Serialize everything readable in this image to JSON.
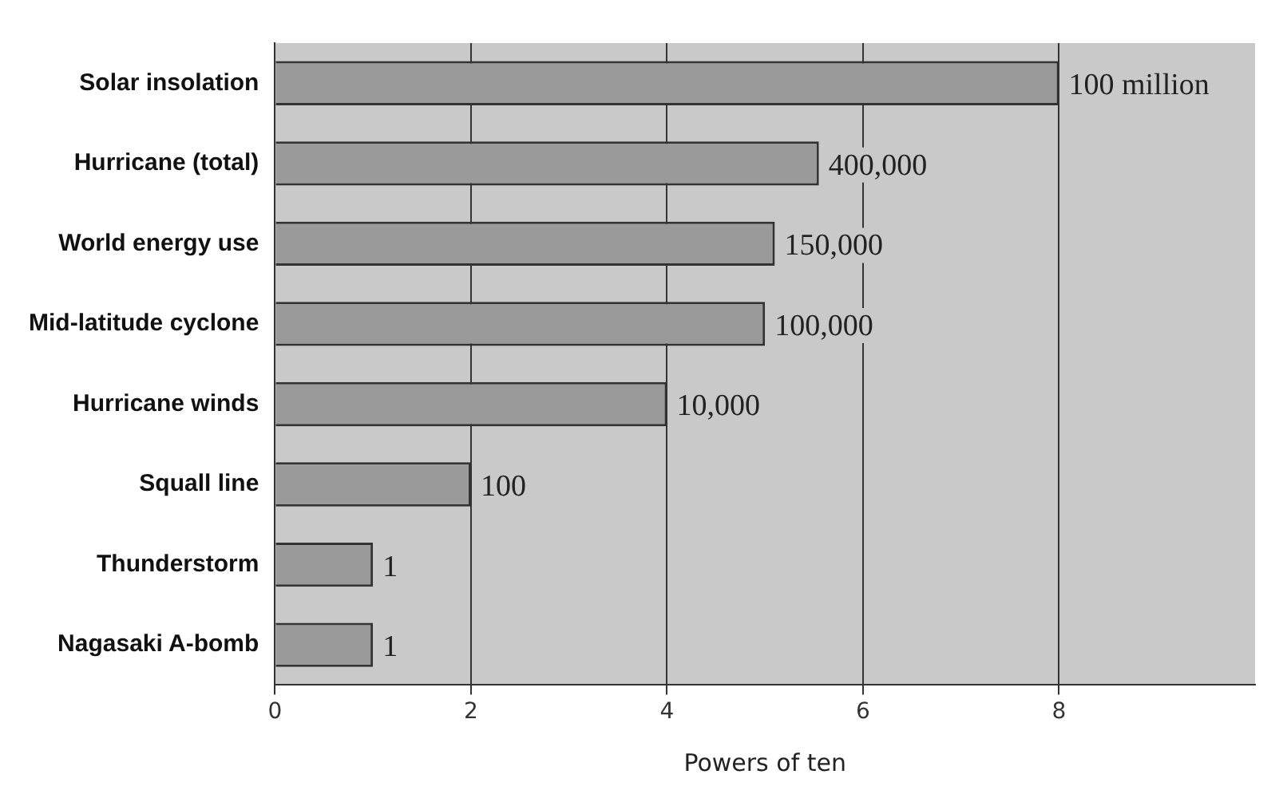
{
  "chart_data": {
    "type": "bar",
    "orientation": "horizontal",
    "xlabel": "Powers of ten",
    "categories": [
      "Solar insolation",
      "Hurricane (total)",
      "World energy use",
      "Mid-latitude cyclone",
      "Hurricane winds",
      "Squall line",
      "Thunderstorm",
      "Nagasaki A-bomb"
    ],
    "values": [
      8,
      5.55,
      5.1,
      5,
      4,
      2,
      1,
      1
    ],
    "annotations": [
      {
        "text": "100 million",
        "x": 8,
        "y": "Solar insolation"
      },
      {
        "text": "400,000",
        "x": 5.55,
        "y": "Hurricane (total)"
      },
      {
        "text": "150,000",
        "x": 5.1,
        "y": "World energy use"
      },
      {
        "text": "100,000",
        "x": 5,
        "y": "Mid-latitude cyclone"
      },
      {
        "text": "10,000",
        "x": 4,
        "y": "Hurricane winds"
      },
      {
        "text": "100",
        "x": 2,
        "y": "Squall line"
      },
      {
        "text": "1",
        "x": 1,
        "y": "Thunderstorm"
      },
      {
        "text": "1",
        "x": 1,
        "y": "Nagasaki A-bomb"
      }
    ],
    "color": "#9a9a9a",
    "xlim": [
      0,
      10
    ],
    "xticks": [
      0,
      2,
      4,
      6,
      8
    ],
    "grid": "x",
    "legend": false
  }
}
